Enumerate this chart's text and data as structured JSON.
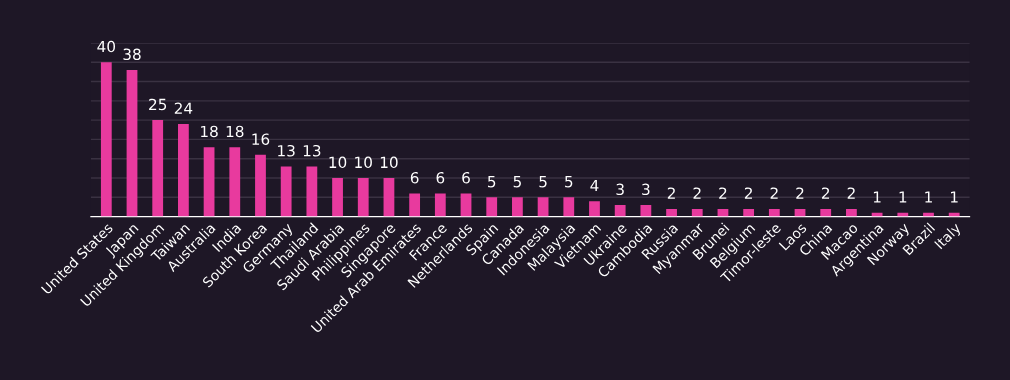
{
  "chart_data": {
    "type": "bar",
    "categories": [
      "United States",
      "Japan",
      "United Kingdom",
      "Taiwan",
      "Australia",
      "India",
      "South Korea",
      "Germany",
      "Thailand",
      "Saudi Arabia",
      "Philippines",
      "Singapore",
      "United Arab Emirates",
      "France",
      "Netherlands",
      "Spain",
      "Canada",
      "Indonesia",
      "Malaysia",
      "Vietnam",
      "Ukraine",
      "Cambodia",
      "Russia",
      "Myanmar",
      "Brunei",
      "Belgium",
      "Timor-leste",
      "Laos",
      "China",
      "Macao",
      "Argentina",
      "Norway",
      "Brazil",
      "Italy"
    ],
    "values": [
      40,
      38,
      25,
      24,
      18,
      18,
      16,
      13,
      13,
      10,
      10,
      10,
      6,
      6,
      6,
      5,
      5,
      5,
      5,
      4,
      3,
      3,
      2,
      2,
      2,
      2,
      2,
      2,
      2,
      2,
      1,
      1,
      1,
      1
    ],
    "color": "#e83a9e",
    "ylim": [
      0,
      45
    ],
    "yticks": [
      {
        "value": 0,
        "label": null
      },
      {
        "value": 5,
        "label": null
      },
      {
        "value": 10,
        "label": null
      },
      {
        "value": 15,
        "label": null
      },
      {
        "value": 20,
        "label": null
      },
      {
        "value": 25,
        "label": null
      },
      {
        "value": 30,
        "label": null
      },
      {
        "value": 35,
        "label": null
      },
      {
        "value": 40,
        "label": null
      },
      {
        "value": 45,
        "label": null
      }
    ],
    "grid": "y",
    "data_labels": true,
    "tick_labels": "x"
  }
}
